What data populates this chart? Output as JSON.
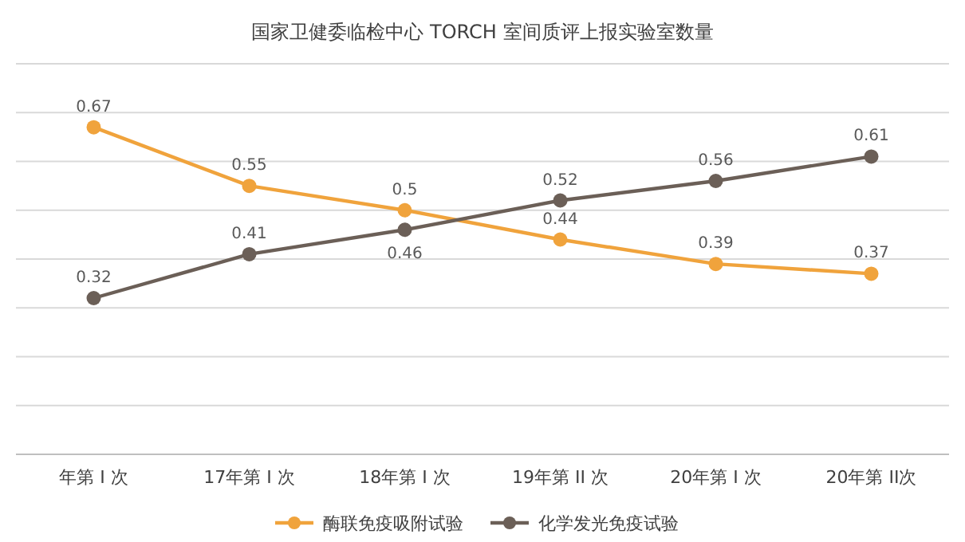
{
  "chart_data": {
    "type": "line",
    "title": "国家卫健委临检中心 TORCH 室间质评上报实验室数量",
    "categories": [
      "年第 I 次",
      "17年第 I 次",
      "18年第 I 次",
      "19年第 II 次",
      "20年第 I 次",
      "20年第 II次"
    ],
    "series": [
      {
        "name": "酶联免疫吸附试验",
        "color": "#f0a33c",
        "values": [
          0.67,
          0.55,
          0.5,
          0.44,
          0.39,
          0.37
        ]
      },
      {
        "name": "化学发光免疫试验",
        "color": "#6b5f57",
        "values": [
          0.32,
          0.41,
          0.46,
          0.52,
          0.56,
          0.61
        ]
      }
    ],
    "ylim": [
      0,
      0.8
    ],
    "yticks": [
      {
        "value": 0,
        "label": null
      },
      {
        "value": 0.1,
        "label": null
      },
      {
        "value": 0.2,
        "label": null
      },
      {
        "value": 0.3,
        "label": null
      },
      {
        "value": 0.4,
        "label": null
      },
      {
        "value": 0.5,
        "label": null
      },
      {
        "value": 0.6,
        "label": null
      },
      {
        "value": 0.7,
        "label": null
      },
      {
        "value": 0.8,
        "label": null
      }
    ],
    "tick_labels": "x",
    "grid": "y",
    "data_labels": true,
    "marker": "circle",
    "line_style": "solid",
    "legend": "bottom"
  }
}
